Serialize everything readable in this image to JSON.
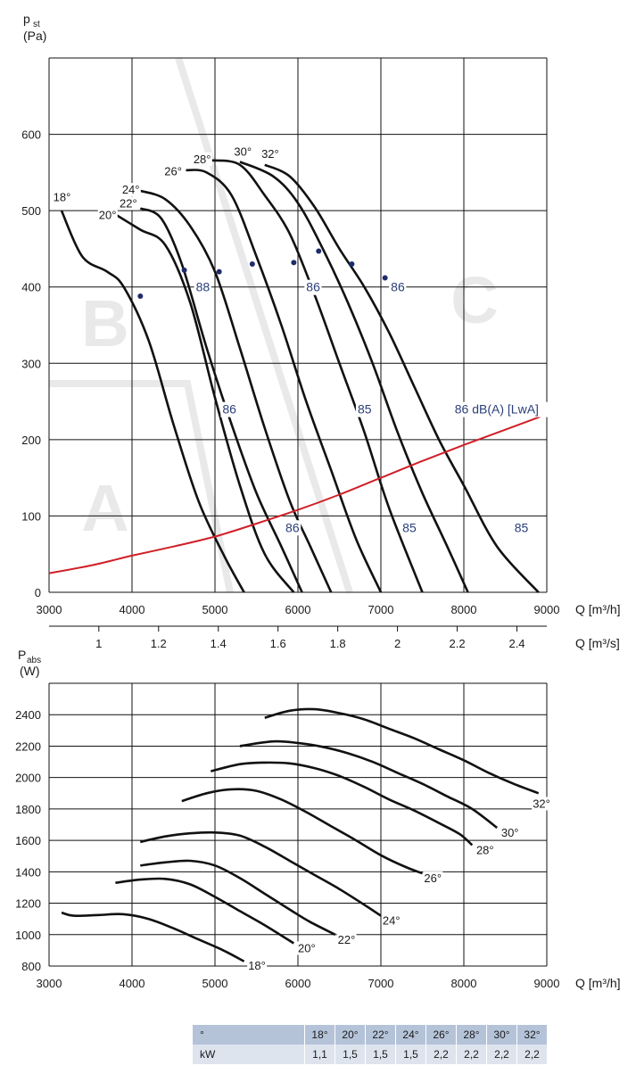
{
  "chart_data": [
    {
      "type": "line",
      "title": "",
      "ylabel_main": "p",
      "ylabel_sub": "st",
      "ylabel_unit": "(Pa)",
      "xlabel": "Q [m³/h]",
      "xlabel2": "Q [m³/s]",
      "xlim": [
        3000,
        9000
      ],
      "ylim": [
        0,
        700
      ],
      "xticks": [
        "3000",
        "4000",
        "5000",
        "6000",
        "7000",
        "8000",
        "9000"
      ],
      "yticks": [
        "0",
        "100",
        "200",
        "300",
        "400",
        "500",
        "600"
      ],
      "x2ticks": [
        "1",
        "1.2",
        "1.4",
        "1.6",
        "1.8",
        "2",
        "2.2",
        "2.4"
      ],
      "x2tick_values": [
        1.0,
        1.2,
        1.4,
        1.6,
        1.8,
        2.0,
        2.2,
        2.4
      ],
      "grid": true,
      "zones": [
        "A",
        "B",
        "C"
      ],
      "series": [
        {
          "name": "18°",
          "points": [
            [
              3150,
              500
            ],
            [
              3400,
              440
            ],
            [
              3700,
              420
            ],
            [
              3900,
              400
            ],
            [
              4200,
              330
            ],
            [
              4500,
              220
            ],
            [
              4800,
              120
            ],
            [
              5100,
              50
            ],
            [
              5350,
              0
            ]
          ]
        },
        {
          "name": "20°",
          "points": [
            [
              3800,
              495
            ],
            [
              4100,
              475
            ],
            [
              4400,
              455
            ],
            [
              4700,
              380
            ],
            [
              5000,
              255
            ],
            [
              5300,
              140
            ],
            [
              5600,
              50
            ],
            [
              5950,
              0
            ]
          ]
        },
        {
          "name": "22°",
          "points": [
            [
              4100,
              503
            ],
            [
              4350,
              490
            ],
            [
              4600,
              430
            ],
            [
              4900,
              320
            ],
            [
              5200,
              220
            ],
            [
              5500,
              130
            ],
            [
              5800,
              60
            ],
            [
              6050,
              0
            ]
          ]
        },
        {
          "name": "24°",
          "points": [
            [
              4100,
              526
            ],
            [
              4400,
              515
            ],
            [
              4700,
              480
            ],
            [
              5000,
              420
            ],
            [
              5300,
              320
            ],
            [
              5600,
              215
            ],
            [
              5900,
              120
            ],
            [
              6150,
              60
            ],
            [
              6400,
              0
            ]
          ]
        },
        {
          "name": "26°",
          "points": [
            [
              4650,
              553
            ],
            [
              4900,
              550
            ],
            [
              5200,
              520
            ],
            [
              5500,
              440
            ],
            [
              5800,
              350
            ],
            [
              6100,
              250
            ],
            [
              6400,
              160
            ],
            [
              6700,
              70
            ],
            [
              7000,
              0
            ]
          ]
        },
        {
          "name": "28°",
          "points": [
            [
              4950,
              566
            ],
            [
              5300,
              560
            ],
            [
              5600,
              520
            ],
            [
              5900,
              470
            ],
            [
              6200,
              390
            ],
            [
              6500,
              300
            ],
            [
              6800,
              210
            ],
            [
              7100,
              110
            ],
            [
              7500,
              0
            ]
          ]
        },
        {
          "name": "30°",
          "points": [
            [
              5300,
              564
            ],
            [
              5700,
              545
            ],
            [
              6000,
              510
            ],
            [
              6300,
              450
            ],
            [
              6600,
              380
            ],
            [
              6900,
              300
            ],
            [
              7200,
              210
            ],
            [
              7500,
              130
            ],
            [
              7800,
              60
            ],
            [
              8050,
              0
            ]
          ]
        },
        {
          "name": "32°",
          "points": [
            [
              5600,
              560
            ],
            [
              5900,
              545
            ],
            [
              6200,
              505
            ],
            [
              6500,
              450
            ],
            [
              6800,
              400
            ],
            [
              7100,
              340
            ],
            [
              7400,
              270
            ],
            [
              7700,
              200
            ],
            [
              8000,
              140
            ],
            [
              8400,
              60
            ],
            [
              8900,
              0
            ]
          ]
        }
      ],
      "system_curve": {
        "name": "dB(A) [LwA]",
        "points": [
          [
            3000,
            25
          ],
          [
            3500,
            35
          ],
          [
            4000,
            48
          ],
          [
            4500,
            60
          ],
          [
            5000,
            73
          ],
          [
            5500,
            90
          ],
          [
            6000,
            108
          ],
          [
            6500,
            128
          ],
          [
            7000,
            150
          ],
          [
            7500,
            172
          ],
          [
            8000,
            193
          ],
          [
            8500,
            213
          ],
          [
            8920,
            230
          ]
        ]
      },
      "op_points": [
        [
          4100,
          388
        ],
        [
          4630,
          422
        ],
        [
          5050,
          420
        ],
        [
          5450,
          430
        ],
        [
          5950,
          432
        ],
        [
          6250,
          447
        ],
        [
          6650,
          430
        ],
        [
          7050,
          412
        ]
      ],
      "noise_labels": [
        {
          "text": "88",
          "x": 4770,
          "y": 400
        },
        {
          "text": "86",
          "x": 5090,
          "y": 240
        },
        {
          "text": "86",
          "x": 5850,
          "y": 85
        },
        {
          "text": "86",
          "x": 6100,
          "y": 400
        },
        {
          "text": "85",
          "x": 6720,
          "y": 240
        },
        {
          "text": "85",
          "x": 7260,
          "y": 85
        },
        {
          "text": "86",
          "x": 7120,
          "y": 400
        },
        {
          "text": "86 dB(A) [LwA]",
          "x": 7890,
          "y": 240
        },
        {
          "text": "85",
          "x": 8610,
          "y": 85
        }
      ],
      "curve_labels": [
        {
          "text": "18°",
          "x": 3050,
          "y": 518
        },
        {
          "text": "20°",
          "x": 3600,
          "y": 495
        },
        {
          "text": "22°",
          "x": 3850,
          "y": 510
        },
        {
          "text": "24°",
          "x": 3880,
          "y": 528
        },
        {
          "text": "26°",
          "x": 4390,
          "y": 552
        },
        {
          "text": "28°",
          "x": 4740,
          "y": 568
        },
        {
          "text": "30°",
          "x": 5230,
          "y": 578
        },
        {
          "text": "32°",
          "x": 5560,
          "y": 575
        }
      ]
    },
    {
      "type": "line",
      "title": "",
      "ylabel_main": "P",
      "ylabel_sub": "abs",
      "ylabel_unit": "(W)",
      "xlabel": "Q [m³/h]",
      "xlim": [
        3000,
        9000
      ],
      "ylim": [
        800,
        2600
      ],
      "xticks": [
        "3000",
        "4000",
        "5000",
        "6000",
        "7000",
        "8000",
        "9000"
      ],
      "yticks": [
        "800",
        "1000",
        "1200",
        "1400",
        "1600",
        "1800",
        "2000",
        "2200",
        "2400"
      ],
      "grid": true,
      "series": [
        {
          "name": "18°",
          "points": [
            [
              3150,
              1140
            ],
            [
              3300,
              1120
            ],
            [
              3600,
              1125
            ],
            [
              3900,
              1130
            ],
            [
              4200,
              1100
            ],
            [
              4500,
              1040
            ],
            [
              4800,
              970
            ],
            [
              5100,
              900
            ],
            [
              5350,
              830
            ]
          ]
        },
        {
          "name": "20°",
          "points": [
            [
              3800,
              1330
            ],
            [
              4100,
              1350
            ],
            [
              4400,
              1355
            ],
            [
              4700,
              1320
            ],
            [
              5000,
              1240
            ],
            [
              5300,
              1150
            ],
            [
              5600,
              1060
            ],
            [
              5950,
              945
            ]
          ]
        },
        {
          "name": "22°",
          "points": [
            [
              4100,
              1440
            ],
            [
              4400,
              1460
            ],
            [
              4700,
              1470
            ],
            [
              5000,
              1440
            ],
            [
              5300,
              1360
            ],
            [
              5600,
              1260
            ],
            [
              5900,
              1160
            ],
            [
              6150,
              1080
            ],
            [
              6450,
              1000
            ]
          ]
        },
        {
          "name": "24°",
          "points": [
            [
              4100,
              1590
            ],
            [
              4400,
              1625
            ],
            [
              4700,
              1645
            ],
            [
              5000,
              1650
            ],
            [
              5300,
              1630
            ],
            [
              5600,
              1560
            ],
            [
              5900,
              1470
            ],
            [
              6200,
              1380
            ],
            [
              6500,
              1290
            ],
            [
              6800,
              1190
            ],
            [
              7000,
              1120
            ]
          ]
        },
        {
          "name": "26°",
          "points": [
            [
              4600,
              1850
            ],
            [
              4900,
              1900
            ],
            [
              5200,
              1925
            ],
            [
              5500,
              1915
            ],
            [
              5800,
              1860
            ],
            [
              6100,
              1780
            ],
            [
              6400,
              1690
            ],
            [
              6700,
              1600
            ],
            [
              7000,
              1505
            ],
            [
              7300,
              1430
            ],
            [
              7500,
              1390
            ]
          ]
        },
        {
          "name": "28°",
          "points": [
            [
              4950,
              2040
            ],
            [
              5300,
              2085
            ],
            [
              5600,
              2095
            ],
            [
              5900,
              2090
            ],
            [
              6200,
              2060
            ],
            [
              6500,
              2010
            ],
            [
              6800,
              1940
            ],
            [
              7100,
              1860
            ],
            [
              7400,
              1790
            ],
            [
              7700,
              1710
            ],
            [
              7950,
              1640
            ],
            [
              8100,
              1570
            ]
          ]
        },
        {
          "name": "30°",
          "points": [
            [
              5300,
              2200
            ],
            [
              5700,
              2230
            ],
            [
              6000,
              2220
            ],
            [
              6300,
              2195
            ],
            [
              6600,
              2155
            ],
            [
              6900,
              2100
            ],
            [
              7200,
              2030
            ],
            [
              7500,
              1960
            ],
            [
              7800,
              1880
            ],
            [
              8100,
              1800
            ],
            [
              8400,
              1680
            ]
          ]
        },
        {
          "name": "32°",
          "points": [
            [
              5600,
              2380
            ],
            [
              5900,
              2425
            ],
            [
              6200,
              2435
            ],
            [
              6500,
              2410
            ],
            [
              6800,
              2370
            ],
            [
              7100,
              2310
            ],
            [
              7400,
              2250
            ],
            [
              7700,
              2180
            ],
            [
              8000,
              2110
            ],
            [
              8300,
              2030
            ],
            [
              8600,
              1960
            ],
            [
              8900,
              1900
            ]
          ]
        }
      ],
      "curve_labels": [
        {
          "text": "18°",
          "x": 5400,
          "y": 835
        },
        {
          "text": "20°",
          "x": 6000,
          "y": 945
        },
        {
          "text": "22°",
          "x": 6480,
          "y": 1000
        },
        {
          "text": "24°",
          "x": 7020,
          "y": 1120
        },
        {
          "text": "26°",
          "x": 7520,
          "y": 1390
        },
        {
          "text": "28°",
          "x": 8150,
          "y": 1570
        },
        {
          "text": "30°",
          "x": 8450,
          "y": 1680
        },
        {
          "text": "32°",
          "x": 8830,
          "y": 1865
        }
      ]
    },
    {
      "type": "table",
      "header": [
        "°",
        "18°",
        "20°",
        "22°",
        "24°",
        "26°",
        "28°",
        "30°",
        "32°"
      ],
      "rows": [
        [
          "kW",
          "1,1",
          "1,5",
          "1,5",
          "1,5",
          "2,2",
          "2,2",
          "2,2",
          "2,2"
        ]
      ]
    }
  ],
  "style": {
    "curve_color": "#111111",
    "system_curve_color": "#d01f27",
    "noise_label_color": "#2a3f7a",
    "op_point_color": "#1d2c6b",
    "zone_color": "#e9e9e9",
    "table_header_bg": "#b5c3d9",
    "table_row_bg": "#dde4ee"
  }
}
